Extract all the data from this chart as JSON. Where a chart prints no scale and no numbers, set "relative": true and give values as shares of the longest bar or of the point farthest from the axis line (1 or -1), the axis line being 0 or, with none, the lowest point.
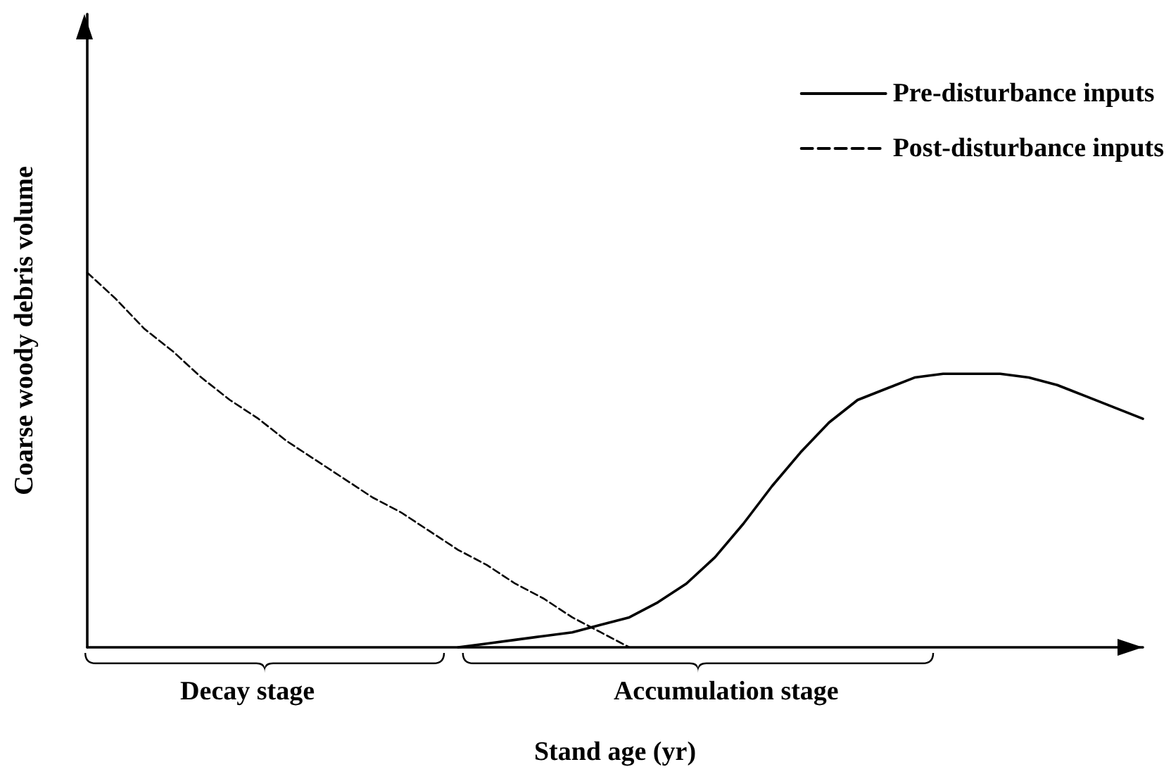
{
  "chart_data": {
    "type": "line",
    "relative": true,
    "xlabel": "Stand age (yr)",
    "ylabel": "Coarse woody debris volume",
    "legend": "top right",
    "categories": [
      null,
      null,
      null,
      null,
      null,
      null,
      null,
      null,
      null,
      null,
      null,
      null,
      null,
      null,
      null,
      null,
      null,
      null,
      null,
      null,
      null,
      null,
      null,
      null,
      null,
      null,
      null,
      null,
      null,
      null,
      null,
      null,
      null,
      null,
      null,
      null,
      null,
      null
    ],
    "series": [
      {
        "name": "Pre-disturbance inputs",
        "color": "#000000",
        "line_style": "solid",
        "values": [
          null,
          null,
          null,
          null,
          null,
          null,
          null,
          null,
          null,
          null,
          null,
          null,
          null,
          0,
          0.01,
          0.02,
          0.03,
          0.04,
          0.06,
          0.08,
          0.12,
          0.17,
          0.24,
          0.33,
          0.43,
          0.52,
          0.6,
          0.66,
          0.69,
          0.72,
          0.73,
          0.73,
          0.73,
          0.72,
          0.7,
          0.67,
          0.64,
          0.61
        ]
      },
      {
        "name": "Post-disturbance inputs",
        "color": "#000000",
        "line_style": "dashed",
        "values": [
          1,
          0.93,
          0.85,
          0.79,
          0.72,
          0.66,
          0.61,
          0.55,
          0.5,
          0.45,
          0.4,
          0.36,
          0.31,
          0.26,
          0.22,
          0.17,
          0.13,
          0.08,
          0.04,
          0,
          null,
          null,
          null,
          null,
          null,
          null,
          null,
          null,
          null,
          null,
          null,
          null,
          null,
          null,
          null,
          null,
          null,
          null
        ]
      }
    ],
    "annotations": [
      "Decay stage",
      "Accumulation stage"
    ],
    "grid": false
  }
}
